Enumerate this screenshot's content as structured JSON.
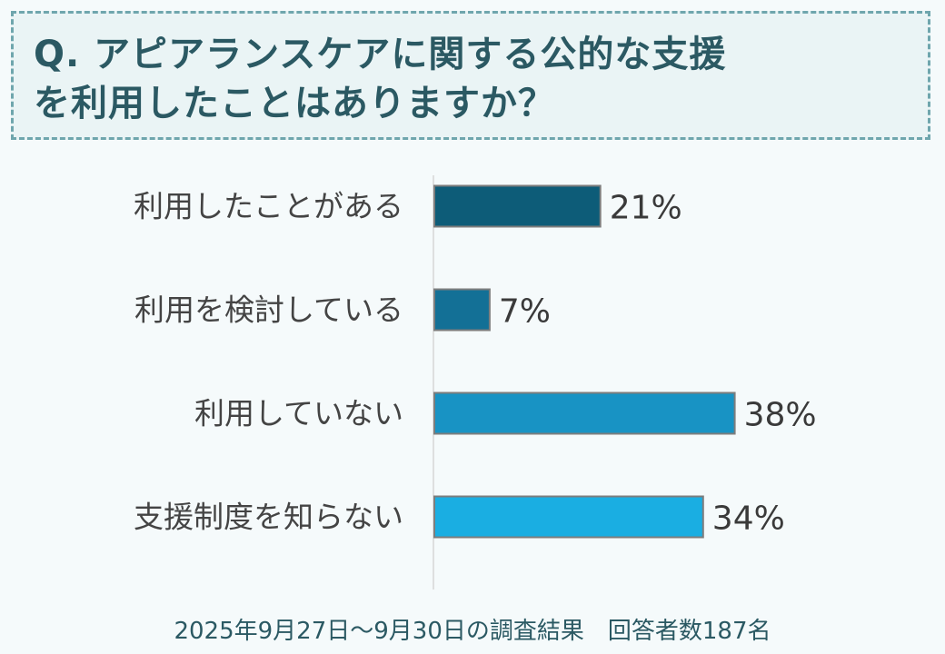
{
  "question": {
    "title_line1": "Q. アピアランスケアに関する公的な支援",
    "title_line2": "を利用したことはありますか？"
  },
  "chart_data": {
    "type": "bar",
    "orientation": "horizontal",
    "categories": [
      "利用したことがある",
      "利用を検討している",
      "利用していない",
      "支援制度を知らない"
    ],
    "values": [
      21,
      7,
      38,
      34
    ],
    "value_labels": [
      "21%",
      "7%",
      "38%",
      "34%"
    ],
    "unit": "%",
    "colors": [
      "#0d5c78",
      "#137096",
      "#1893c4",
      "#1aaee2"
    ],
    "bar_border_color": "#7d7d7d",
    "grid": false,
    "legend": "none"
  },
  "footer": {
    "note": "2025年9月27日～9月30日の調査結果　回答者数187名"
  }
}
